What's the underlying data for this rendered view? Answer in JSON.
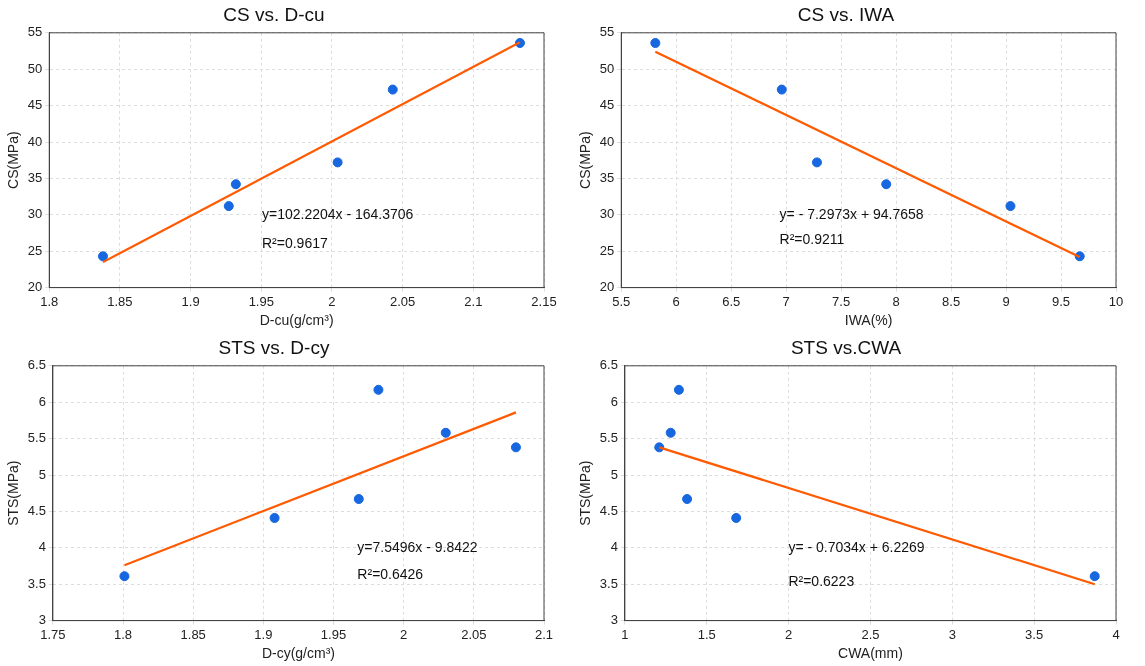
{
  "chart_data": [
    {
      "type": "scatter",
      "title": "CS vs. D-cu",
      "xlabel": "D-cu(g/cm³)",
      "ylabel": "CS(MPa)",
      "xlim": [
        1.8,
        2.15
      ],
      "xticks": [
        1.8,
        1.85,
        1.9,
        1.95,
        2,
        2.05,
        2.1,
        2.15
      ],
      "ylim": [
        20,
        55
      ],
      "yticks": [
        20,
        25,
        30,
        35,
        40,
        45,
        50,
        55
      ],
      "grid": true,
      "legend": false,
      "series": [
        {
          "type": "scatter",
          "marker": "circle",
          "color": "#1667e0",
          "x": [
            1.838,
            1.927,
            1.932,
            2.004,
            2.043,
            2.133
          ],
          "values": [
            24.3,
            31.2,
            34.2,
            37.2,
            47.2,
            53.6
          ]
        },
        {
          "type": "line",
          "color": "#ff5a00",
          "x": [
            1.838,
            2.133
          ],
          "values": [
            23.5,
            53.7
          ]
        }
      ],
      "annotations": [
        "y=102.2204x - 164.3706",
        "R²=0.9617"
      ]
    },
    {
      "type": "scatter",
      "title": "CS vs. IWA",
      "xlabel": "IWA(%)",
      "ylabel": "CS(MPa)",
      "xlim": [
        5.5,
        10
      ],
      "xticks": [
        5.5,
        6,
        6.5,
        7,
        7.5,
        8,
        8.5,
        9,
        9.5,
        10
      ],
      "ylim": [
        20,
        55
      ],
      "yticks": [
        20,
        25,
        30,
        35,
        40,
        45,
        50,
        55
      ],
      "grid": true,
      "legend": false,
      "series": [
        {
          "type": "scatter",
          "marker": "circle",
          "color": "#1667e0",
          "x": [
            5.81,
            6.96,
            7.28,
            7.91,
            9.04,
            9.67
          ],
          "values": [
            53.6,
            47.2,
            37.2,
            34.2,
            31.2,
            24.3
          ]
        },
        {
          "type": "line",
          "color": "#ff5a00",
          "x": [
            5.81,
            9.67
          ],
          "values": [
            52.4,
            24.2
          ]
        }
      ],
      "annotations": [
        "y= - 7.2973x + 94.7658",
        "R²=0.9211"
      ]
    },
    {
      "type": "scatter",
      "title": "STS vs. D-cy",
      "xlabel": "D-cy(g/cm³)",
      "ylabel": "STS(MPa)",
      "xlim": [
        1.75,
        2.1
      ],
      "xticks": [
        1.75,
        1.8,
        1.85,
        1.9,
        1.95,
        2,
        2.05,
        2.1
      ],
      "ylim": [
        3,
        6.5
      ],
      "yticks": [
        3,
        3.5,
        4,
        4.5,
        5,
        5.5,
        6,
        6.5
      ],
      "grid": true,
      "legend": false,
      "series": [
        {
          "type": "scatter",
          "marker": "circle",
          "color": "#1667e0",
          "x": [
            1.801,
            1.908,
            1.968,
            1.982,
            2.03,
            2.08
          ],
          "values": [
            3.61,
            4.41,
            4.67,
            6.17,
            5.58,
            5.38
          ]
        },
        {
          "type": "line",
          "color": "#ff5a00",
          "x": [
            1.801,
            2.08
          ],
          "values": [
            3.76,
            5.86
          ]
        }
      ],
      "annotations": [
        "y=7.5496x - 9.8422",
        "R²=0.6426"
      ]
    },
    {
      "type": "scatter",
      "title": "STS vs.CWA",
      "xlabel": "CWA(mm)",
      "ylabel": "STS(MPa)",
      "xlim": [
        1,
        4
      ],
      "xticks": [
        1,
        1.5,
        2,
        2.5,
        3,
        3.5,
        4
      ],
      "ylim": [
        3,
        6.5
      ],
      "yticks": [
        3,
        3.5,
        4,
        4.5,
        5,
        5.5,
        6,
        6.5
      ],
      "grid": true,
      "legend": false,
      "series": [
        {
          "type": "scatter",
          "marker": "circle",
          "color": "#1667e0",
          "x": [
            1.21,
            1.28,
            1.33,
            1.38,
            1.68,
            3.87
          ],
          "values": [
            5.38,
            5.58,
            6.17,
            4.67,
            4.41,
            3.61
          ]
        },
        {
          "type": "line",
          "color": "#ff5a00",
          "x": [
            1.21,
            3.87
          ],
          "values": [
            5.38,
            3.5
          ]
        }
      ],
      "annotations": [
        "y= - 0.7034x + 6.2269",
        "R²=0.6223"
      ]
    }
  ]
}
